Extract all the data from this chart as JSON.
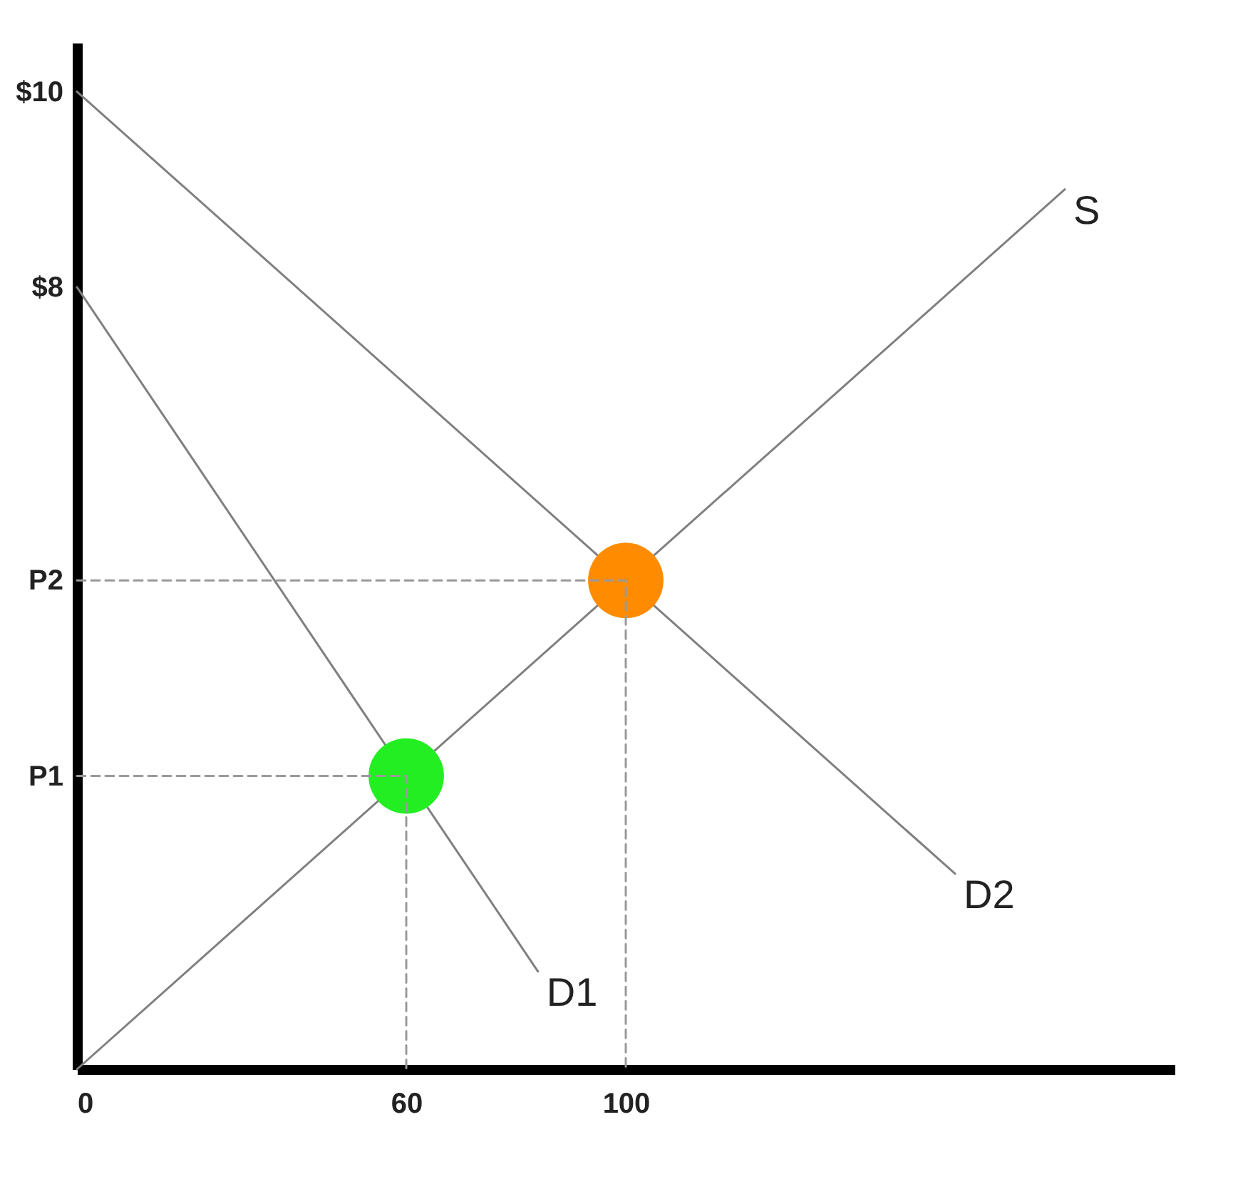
{
  "chart_data": {
    "type": "line",
    "xlim": [
      0,
      200
    ],
    "ylim": [
      0,
      10.5
    ],
    "xticks": [
      0,
      60,
      100
    ],
    "yticks": [
      {
        "value": 3,
        "label": "P1"
      },
      {
        "value": 5,
        "label": "P2"
      },
      {
        "value": 8,
        "label": "$8"
      },
      {
        "value": 10,
        "label": "$10"
      }
    ],
    "grid": false,
    "line_style": "solid",
    "series": [
      {
        "name": "S",
        "color": "#808080",
        "x": [
          0,
          180
        ],
        "values": [
          0,
          9
        ]
      },
      {
        "name": "D1",
        "color": "#808080",
        "x": [
          0,
          84
        ],
        "values": [
          8,
          1
        ]
      },
      {
        "name": "D2",
        "color": "#808080",
        "x": [
          0,
          160
        ],
        "values": [
          10,
          2
        ]
      },
      {
        "type": "scatter",
        "color": "#22ee22",
        "marker": "circle",
        "x": [
          60
        ],
        "values": [
          3
        ]
      },
      {
        "type": "scatter",
        "color": "#ff8c00",
        "marker": "circle",
        "x": [
          100
        ],
        "values": [
          5
        ]
      },
      {
        "type": "line",
        "color": "#999999",
        "line_style": "dashed",
        "x": [
          0,
          60,
          60
        ],
        "values": [
          3,
          3,
          0
        ]
      },
      {
        "type": "line",
        "color": "#999999",
        "line_style": "dashed",
        "x": [
          0,
          100,
          100
        ],
        "values": [
          5,
          5,
          0
        ]
      }
    ]
  }
}
